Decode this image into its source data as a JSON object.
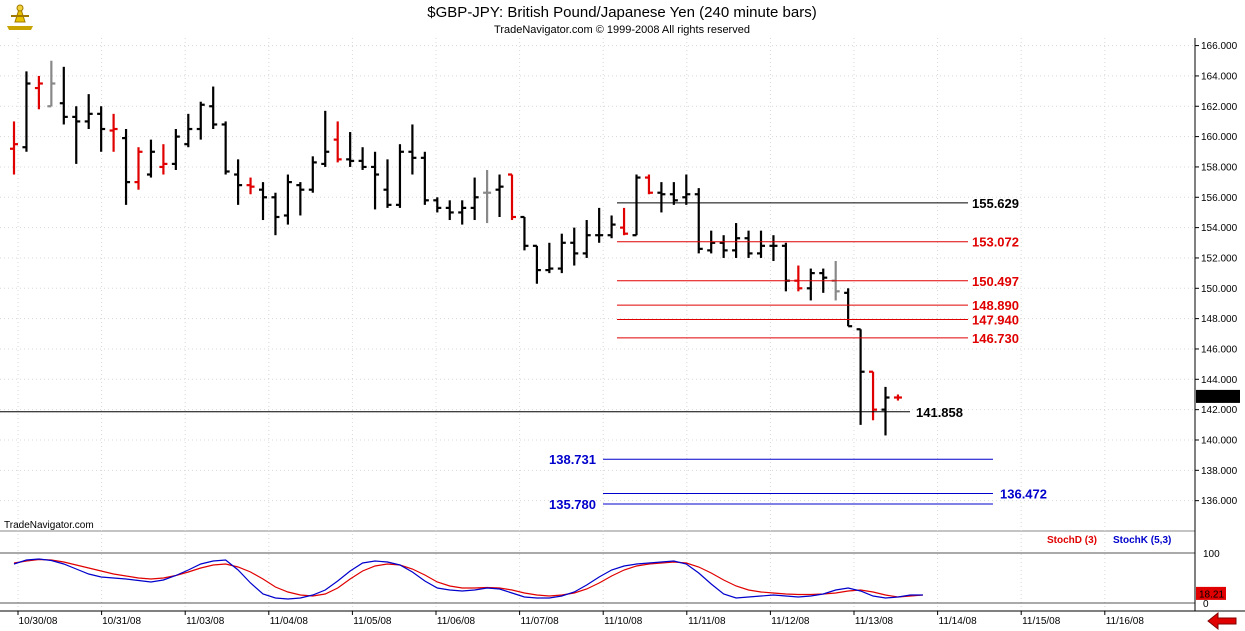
{
  "title": "$GBP-JPY:  British Pound/Japanese Yen  (240 minute bars)",
  "subtitle": "TradeNavigator.com © 1999-2008 All rights reserved",
  "watermark": "TradeNavigator.com",
  "logo_icon": "trade-navigator-logo-icon",
  "nav_icon": "red-left-arrow-icon",
  "colors": {
    "up_bar": "#000000",
    "down_bar": "#e00000",
    "neutral_bar": "#888888",
    "resistance": "#e00000",
    "support": "#0000cc",
    "level": "#000000",
    "stoch_d": "#e00000",
    "stoch_k": "#0000cc",
    "grid": "#d8d8d8"
  },
  "chart_data": [
    {
      "type": "ohlc",
      "title": "$GBP-JPY:  British Pound/Japanese Yen  (240 minute bars)",
      "ylim": [
        134,
        166.5
      ],
      "y_ticks": [
        "166.000",
        "164.000",
        "162.000",
        "160.000",
        "158.000",
        "156.000",
        "154.000",
        "152.000",
        "150.000",
        "148.000",
        "146.000",
        "144.000",
        "142.000",
        "140.000",
        "138.000",
        "136.000"
      ],
      "x_ticks": [
        "10/30/08",
        "10/31/08",
        "11/03/08",
        "11/04/08",
        "11/05/08",
        "11/06/08",
        "11/07/08",
        "11/10/08",
        "11/11/08",
        "11/12/08",
        "11/13/08",
        "11/14/08",
        "11/15/08",
        "11/16/08"
      ],
      "last_price": "142.840",
      "bars": [
        {
          "o": 159.2,
          "h": 161.0,
          "l": 157.5,
          "c": 159.5,
          "col": "down"
        },
        {
          "o": 159.3,
          "h": 164.3,
          "l": 159.0,
          "c": 163.5,
          "col": "up"
        },
        {
          "o": 163.2,
          "h": 164.0,
          "l": 161.8,
          "c": 163.5,
          "col": "down"
        },
        {
          "o": 162.0,
          "h": 165.0,
          "l": 162.0,
          "c": 163.5,
          "col": "neutral"
        },
        {
          "o": 162.2,
          "h": 164.6,
          "l": 160.8,
          "c": 161.3,
          "col": "up"
        },
        {
          "o": 161.3,
          "h": 162.0,
          "l": 158.2,
          "c": 161.0,
          "col": "up"
        },
        {
          "o": 161.0,
          "h": 162.8,
          "l": 160.5,
          "c": 161.5,
          "col": "up"
        },
        {
          "o": 161.5,
          "h": 162.0,
          "l": 159.0,
          "c": 160.5,
          "col": "up"
        },
        {
          "o": 160.4,
          "h": 161.5,
          "l": 159.0,
          "c": 160.5,
          "col": "down"
        },
        {
          "o": 159.9,
          "h": 160.5,
          "l": 155.5,
          "c": 157.0,
          "col": "up"
        },
        {
          "o": 157.0,
          "h": 159.3,
          "l": 156.5,
          "c": 159.0,
          "col": "down"
        },
        {
          "o": 157.5,
          "h": 159.8,
          "l": 157.3,
          "c": 159.0,
          "col": "up"
        },
        {
          "o": 158.0,
          "h": 159.5,
          "l": 157.5,
          "c": 158.2,
          "col": "down"
        },
        {
          "o": 158.2,
          "h": 160.5,
          "l": 157.8,
          "c": 160.0,
          "col": "up"
        },
        {
          "o": 159.5,
          "h": 161.5,
          "l": 159.3,
          "c": 160.5,
          "col": "up"
        },
        {
          "o": 160.5,
          "h": 162.3,
          "l": 159.8,
          "c": 162.1,
          "col": "up"
        },
        {
          "o": 162.0,
          "h": 163.3,
          "l": 160.5,
          "c": 160.8,
          "col": "up"
        },
        {
          "o": 160.8,
          "h": 161.0,
          "l": 157.5,
          "c": 157.7,
          "col": "up"
        },
        {
          "o": 157.5,
          "h": 158.5,
          "l": 155.5,
          "c": 156.8,
          "col": "up"
        },
        {
          "o": 156.8,
          "h": 157.3,
          "l": 156.2,
          "c": 156.7,
          "col": "down"
        },
        {
          "o": 156.5,
          "h": 157.0,
          "l": 154.5,
          "c": 156.0,
          "col": "up"
        },
        {
          "o": 156.0,
          "h": 156.3,
          "l": 153.5,
          "c": 154.7,
          "col": "up"
        },
        {
          "o": 154.8,
          "h": 157.5,
          "l": 154.2,
          "c": 157.0,
          "col": "up"
        },
        {
          "o": 156.8,
          "h": 157.0,
          "l": 154.8,
          "c": 156.5,
          "col": "up"
        },
        {
          "o": 156.5,
          "h": 158.7,
          "l": 156.3,
          "c": 158.3,
          "col": "up"
        },
        {
          "o": 158.2,
          "h": 161.7,
          "l": 158.0,
          "c": 159.0,
          "col": "up"
        },
        {
          "o": 159.8,
          "h": 161.0,
          "l": 158.3,
          "c": 158.5,
          "col": "down"
        },
        {
          "o": 158.5,
          "h": 160.3,
          "l": 158.0,
          "c": 158.4,
          "col": "up"
        },
        {
          "o": 158.4,
          "h": 159.3,
          "l": 157.8,
          "c": 158.0,
          "col": "up"
        },
        {
          "o": 158.0,
          "h": 159.0,
          "l": 155.2,
          "c": 157.5,
          "col": "up"
        },
        {
          "o": 156.5,
          "h": 158.5,
          "l": 155.3,
          "c": 155.5,
          "col": "up"
        },
        {
          "o": 155.5,
          "h": 159.5,
          "l": 155.3,
          "c": 159.0,
          "col": "up"
        },
        {
          "o": 159.0,
          "h": 160.8,
          "l": 157.5,
          "c": 158.6,
          "col": "up"
        },
        {
          "o": 158.6,
          "h": 159.0,
          "l": 155.5,
          "c": 155.8,
          "col": "up"
        },
        {
          "o": 155.8,
          "h": 156.0,
          "l": 155.0,
          "c": 155.3,
          "col": "up"
        },
        {
          "o": 155.3,
          "h": 155.8,
          "l": 154.5,
          "c": 155.0,
          "col": "up"
        },
        {
          "o": 155.0,
          "h": 155.8,
          "l": 154.2,
          "c": 155.3,
          "col": "up"
        },
        {
          "o": 155.3,
          "h": 157.3,
          "l": 154.5,
          "c": 156.0,
          "col": "up"
        },
        {
          "o": 156.3,
          "h": 157.8,
          "l": 154.3,
          "c": 156.3,
          "col": "neutral"
        },
        {
          "o": 156.5,
          "h": 157.5,
          "l": 154.7,
          "c": 156.7,
          "col": "up"
        },
        {
          "o": 157.5,
          "h": 157.5,
          "l": 154.5,
          "c": 154.7,
          "col": "down"
        },
        {
          "o": 154.7,
          "h": 154.7,
          "l": 152.5,
          "c": 152.8,
          "col": "up"
        },
        {
          "o": 152.8,
          "h": 152.8,
          "l": 150.3,
          "c": 151.2,
          "col": "up"
        },
        {
          "o": 151.2,
          "h": 153.0,
          "l": 151.0,
          "c": 151.3,
          "col": "up"
        },
        {
          "o": 151.3,
          "h": 153.6,
          "l": 151.0,
          "c": 153.0,
          "col": "up"
        },
        {
          "o": 153.0,
          "h": 154.0,
          "l": 151.5,
          "c": 152.3,
          "col": "up"
        },
        {
          "o": 152.3,
          "h": 154.5,
          "l": 152.0,
          "c": 153.5,
          "col": "up"
        },
        {
          "o": 153.5,
          "h": 155.3,
          "l": 153.0,
          "c": 153.5,
          "col": "up"
        },
        {
          "o": 153.5,
          "h": 154.8,
          "l": 153.3,
          "c": 154.2,
          "col": "up"
        },
        {
          "o": 154.0,
          "h": 155.3,
          "l": 153.5,
          "c": 153.6,
          "col": "down"
        },
        {
          "o": 153.5,
          "h": 157.5,
          "l": 153.5,
          "c": 157.3,
          "col": "up"
        },
        {
          "o": 157.3,
          "h": 157.5,
          "l": 156.2,
          "c": 156.3,
          "col": "down"
        },
        {
          "o": 156.3,
          "h": 157.0,
          "l": 155.0,
          "c": 156.2,
          "col": "up"
        },
        {
          "o": 156.2,
          "h": 157.0,
          "l": 155.5,
          "c": 155.8,
          "col": "up"
        },
        {
          "o": 156.0,
          "h": 157.5,
          "l": 155.5,
          "c": 156.2,
          "col": "up"
        },
        {
          "o": 156.2,
          "h": 156.6,
          "l": 152.3,
          "c": 152.6,
          "col": "up"
        },
        {
          "o": 152.5,
          "h": 153.8,
          "l": 152.3,
          "c": 153.0,
          "col": "up"
        },
        {
          "o": 153.0,
          "h": 153.5,
          "l": 152.0,
          "c": 152.5,
          "col": "up"
        },
        {
          "o": 152.5,
          "h": 154.3,
          "l": 152.0,
          "c": 153.3,
          "col": "up"
        },
        {
          "o": 153.3,
          "h": 153.8,
          "l": 152.0,
          "c": 152.3,
          "col": "up"
        },
        {
          "o": 152.3,
          "h": 153.8,
          "l": 152.0,
          "c": 152.8,
          "col": "up"
        },
        {
          "o": 152.8,
          "h": 153.5,
          "l": 151.8,
          "c": 152.8,
          "col": "up"
        },
        {
          "o": 152.8,
          "h": 153.0,
          "l": 149.8,
          "c": 150.5,
          "col": "up"
        },
        {
          "o": 150.5,
          "h": 151.5,
          "l": 149.8,
          "c": 150.0,
          "col": "down"
        },
        {
          "o": 150.0,
          "h": 151.3,
          "l": 149.2,
          "c": 151.0,
          "col": "up"
        },
        {
          "o": 151.0,
          "h": 151.3,
          "l": 149.7,
          "c": 150.7,
          "col": "up"
        },
        {
          "o": 150.5,
          "h": 151.8,
          "l": 149.2,
          "c": 149.8,
          "col": "neutral"
        },
        {
          "o": 149.7,
          "h": 150.0,
          "l": 147.5,
          "c": 147.5,
          "col": "up"
        },
        {
          "o": 147.3,
          "h": 147.3,
          "l": 141.0,
          "c": 144.5,
          "col": "up"
        },
        {
          "o": 144.5,
          "h": 144.5,
          "l": 141.3,
          "c": 142.0,
          "col": "down"
        },
        {
          "o": 142.0,
          "h": 143.5,
          "l": 140.3,
          "c": 142.8,
          "col": "up"
        },
        {
          "o": 142.8,
          "h": 143.0,
          "l": 142.6,
          "c": 142.8,
          "col": "down"
        }
      ],
      "levels": [
        {
          "value": 155.629,
          "label": "155.629",
          "kind": "level"
        },
        {
          "value": 153.072,
          "label": "153.072",
          "kind": "resistance"
        },
        {
          "value": 150.497,
          "label": "150.497",
          "kind": "resistance"
        },
        {
          "value": 148.89,
          "label": "148.890",
          "kind": "resistance"
        },
        {
          "value": 147.94,
          "label": "147.940",
          "kind": "resistance"
        },
        {
          "value": 146.73,
          "label": "146.730",
          "kind": "resistance"
        },
        {
          "value": 141.858,
          "label": "141.858",
          "kind": "level"
        },
        {
          "value": 138.731,
          "label": "138.731",
          "kind": "support"
        },
        {
          "value": 136.472,
          "label": "136.472",
          "kind": "support"
        },
        {
          "value": 135.78,
          "label": "135.780",
          "kind": "support"
        }
      ]
    },
    {
      "type": "line",
      "ylim": [
        0,
        100
      ],
      "y_ticks": [
        "100",
        "0"
      ],
      "last_value": "18.21",
      "series": [
        {
          "name": "StochD (3)",
          "values": [
            80,
            84,
            87,
            86,
            82,
            76,
            70,
            64,
            58,
            54,
            50,
            48,
            50,
            55,
            62,
            70,
            76,
            78,
            72,
            62,
            48,
            32,
            22,
            16,
            14,
            18,
            30,
            48,
            64,
            74,
            78,
            76,
            68,
            56,
            42,
            34,
            30,
            30,
            31,
            30,
            26,
            20,
            16,
            14,
            16,
            20,
            28,
            40,
            54,
            66,
            74,
            78,
            80,
            82,
            80,
            72,
            60,
            46,
            34,
            26,
            22,
            20,
            18,
            17,
            17,
            18,
            20,
            24,
            26,
            22,
            16,
            12,
            14,
            16
          ]
        },
        {
          "name": "StochK (5,3)",
          "values": [
            78,
            86,
            88,
            85,
            78,
            68,
            58,
            52,
            50,
            48,
            45,
            42,
            46,
            55,
            66,
            78,
            84,
            86,
            66,
            40,
            18,
            10,
            8,
            10,
            16,
            26,
            44,
            64,
            80,
            84,
            82,
            76,
            62,
            44,
            30,
            26,
            24,
            26,
            30,
            28,
            20,
            12,
            10,
            10,
            14,
            22,
            36,
            52,
            66,
            74,
            78,
            80,
            82,
            84,
            78,
            60,
            38,
            18,
            10,
            12,
            14,
            16,
            14,
            12,
            14,
            18,
            26,
            30,
            24,
            14,
            10,
            12,
            16,
            16
          ]
        }
      ]
    }
  ]
}
